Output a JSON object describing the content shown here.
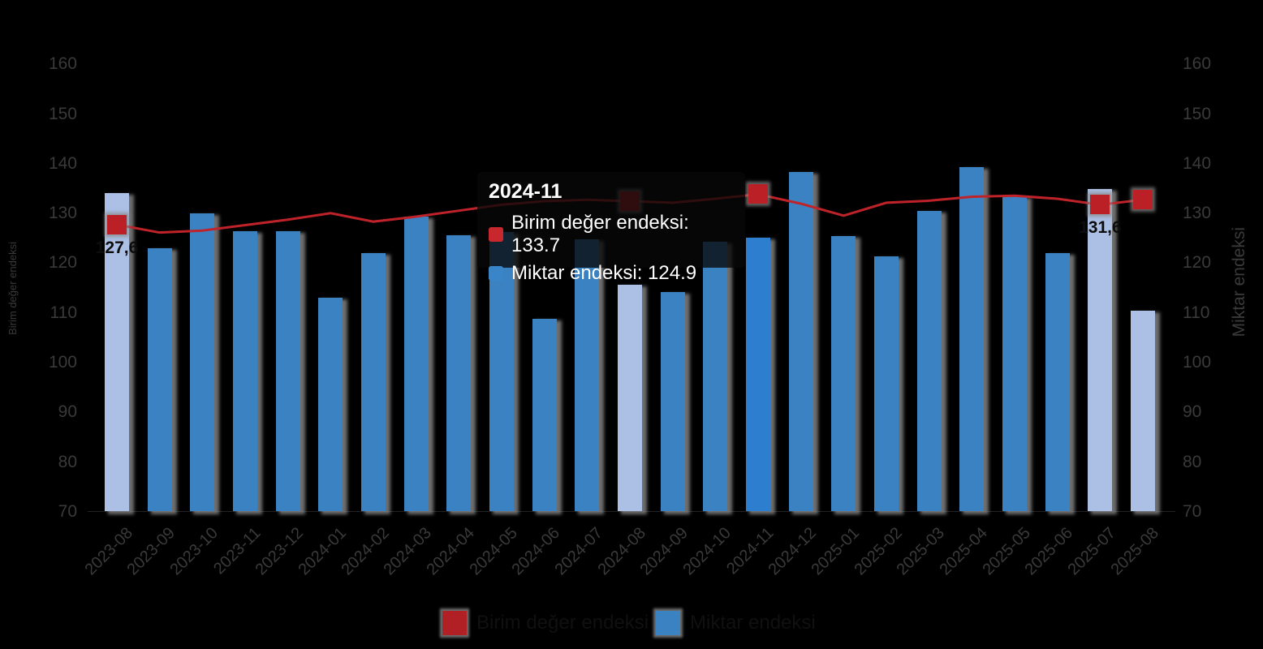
{
  "chart_data": {
    "type": "bar",
    "subtype": "bar-line-combo",
    "categories": [
      "2023-08",
      "2023-09",
      "2023-10",
      "2023-11",
      "2023-12",
      "2024-01",
      "2024-02",
      "2024-03",
      "2024-04",
      "2024-05",
      "2024-06",
      "2024-07",
      "2024-08",
      "2024-09",
      "2024-10",
      "2024-11",
      "2024-12",
      "2025-01",
      "2025-02",
      "2025-03",
      "2025-04",
      "2025-05",
      "2025-06",
      "2025-07",
      "2025-08"
    ],
    "series": [
      {
        "name": "Birim değer endeksi",
        "type": "line",
        "color": "#bf2329",
        "values": [
          127.6,
          126.0,
          126.4,
          127.5,
          128.6,
          129.9,
          128.2,
          129.2,
          130.4,
          131.6,
          132.3,
          132.6,
          132.3,
          132.0,
          132.8,
          133.7,
          131.8,
          129.4,
          132.0,
          132.4,
          133.2,
          133.4,
          132.8,
          131.6,
          132.6
        ]
      },
      {
        "name": "Miktar endeksi",
        "type": "bar",
        "color": "#3a82c2",
        "values": [
          133.9,
          122.8,
          129.9,
          126.2,
          126.2,
          112.9,
          121.9,
          129.2,
          125.4,
          126.1,
          108.7,
          124.6,
          115.5,
          114.0,
          124.1,
          124.9,
          138.2,
          125.3,
          121.2,
          130.3,
          139.2,
          133.3,
          121.9,
          134.7,
          110.3
        ]
      }
    ],
    "ylabel": "Birim değer endeksi",
    "ylabel_right": "Miktar endeksi",
    "xlabel": "",
    "title": "",
    "ylim": [
      70,
      165
    ],
    "y_ticks": [
      70,
      80,
      90,
      100,
      110,
      120,
      130,
      140,
      150,
      160
    ],
    "grid": "off",
    "legend_position": "bottom",
    "highlighted_indices": [
      0,
      12,
      23,
      24
    ],
    "highlight_bar_color": "#abc0e4",
    "marker_color": "#bb2026",
    "hovered_index": 15,
    "hovered_bar_color": "#2e7ecf",
    "point_labels": [
      {
        "index": 0,
        "text": "127,6",
        "visible_fragment": "27,"
      },
      {
        "index": 23,
        "text": "131,6",
        "visible_fragment": "31,"
      }
    ]
  },
  "tooltip": {
    "title": "2024-11",
    "rows": [
      {
        "label": "Birim değer endeksi",
        "value": "133.7",
        "swatch_color": "#c8282d",
        "text": "Birim değer endeksi: 133.7"
      },
      {
        "label": "Miktar endeksi",
        "value": "124.9",
        "swatch_color": "#3a84c8",
        "text": "Miktar endeksi: 124.9"
      }
    ]
  },
  "legend": {
    "items": [
      {
        "label": "Birim değer endeksi",
        "swatch_color": "#b02025"
      },
      {
        "label": "Miktar endeksi",
        "swatch_color": "#3a82c2"
      }
    ]
  },
  "colors": {
    "background": "#000000",
    "axis_text": "#3a3a3a",
    "line_red": "#bf2329",
    "bar_blue": "#3a82c2",
    "bar_light": "#abc0e4",
    "bar_hover": "#2e7ecf",
    "shadow_gray": "#8a8a8a",
    "tooltip_text": "#ffffff",
    "point_label_text": "#0d0d0d"
  }
}
